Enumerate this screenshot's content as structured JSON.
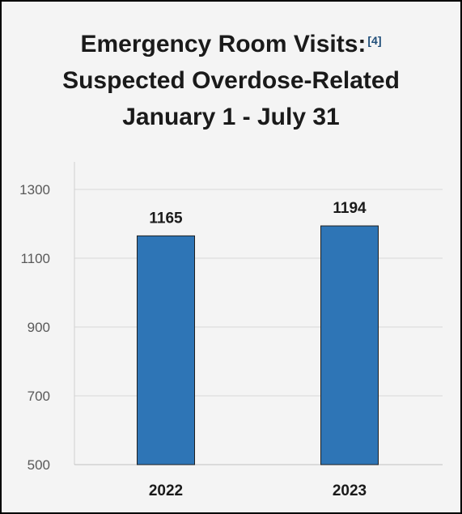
{
  "chart_data": {
    "type": "bar",
    "title_lines": [
      "Emergency Room Visits:",
      "Suspected Overdose-Related",
      "January 1 - July 31"
    ],
    "title_ref": "[4]",
    "categories": [
      "2022",
      "2023"
    ],
    "values": [
      1165,
      1194
    ],
    "data_labels": [
      "1165",
      "1194"
    ],
    "yticks": [
      "500",
      "700",
      "900",
      "1100",
      "1300"
    ],
    "ylim": [
      500,
      1380
    ],
    "bar_color": "#2e75b6",
    "grid": true
  }
}
